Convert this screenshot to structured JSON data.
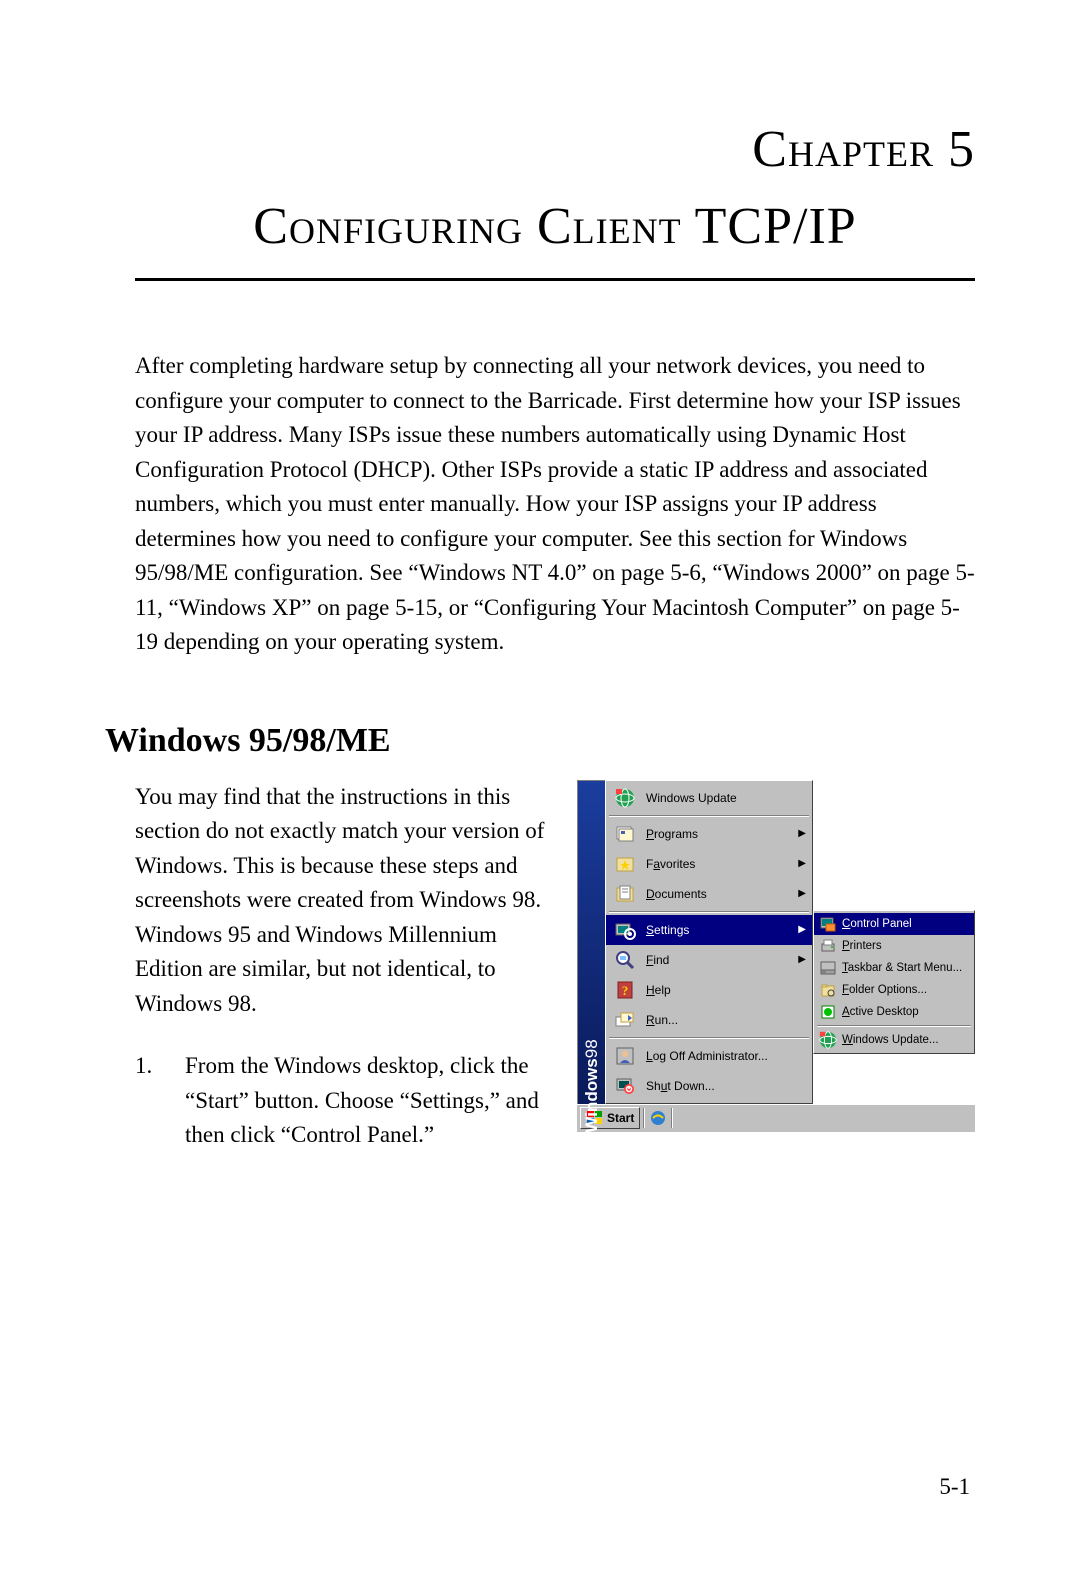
{
  "chapter": {
    "label": "Chapter 5",
    "title": "Configuring Client TCP/IP"
  },
  "intro_paragraph": "After completing hardware setup by connecting all your network devices, you need to configure your computer to connect to the Barricade. First determine how your ISP issues your IP address. Many ISPs issue these numbers automatically using Dynamic Host Configuration Protocol (DHCP). Other ISPs provide a static IP address and associated numbers, which you must enter manually. How your ISP assigns your IP address determines how you need to configure your computer. See this section for Windows 95/98/ME configuration. See “Windows NT 4.0” on page 5-6, “Windows 2000” on page 5-11, “Windows XP” on page 5-15, or “Configuring Your Macintosh Computer” on page 5-19 depending on your operating system.",
  "section": {
    "heading": "Windows 95/98/ME",
    "body_para": "You may find that the instructions in this section do not exactly match your version of Windows. This is because these steps and screenshots were created from Windows 98. Windows 95 and Windows Millennium Edition are similar, but not identical, to Windows 98.",
    "step_number": "1.",
    "step_text": "From the Windows desktop, click the “Start” button. Choose “Settings,” and then click “Control Panel.”"
  },
  "screenshot": {
    "banner_text_main": "Windows",
    "banner_text_version": "98",
    "start_menu": {
      "items": [
        {
          "label": "Windows Update",
          "underline": "",
          "icon": "globe",
          "arrow": false,
          "hl": false
        },
        {
          "sep": true
        },
        {
          "label": "Programs",
          "underline": "P",
          "icon": "programs",
          "arrow": true,
          "hl": false
        },
        {
          "label": "Favorites",
          "underline": "a",
          "icon": "favorites",
          "arrow": true,
          "hl": false
        },
        {
          "label": "Documents",
          "underline": "D",
          "icon": "documents",
          "arrow": true,
          "hl": false
        },
        {
          "sep": true
        },
        {
          "label": "Settings",
          "underline": "S",
          "icon": "settings",
          "arrow": true,
          "hl": true
        },
        {
          "label": "Find",
          "underline": "F",
          "icon": "find",
          "arrow": true,
          "hl": false
        },
        {
          "label": "Help",
          "underline": "H",
          "icon": "help",
          "arrow": false,
          "hl": false
        },
        {
          "label": "Run...",
          "underline": "R",
          "icon": "run",
          "arrow": false,
          "hl": false
        },
        {
          "sep": true
        },
        {
          "label": "Log Off Administrator...",
          "underline": "L",
          "icon": "logoff",
          "arrow": false,
          "hl": false
        },
        {
          "label": "Shut Down...",
          "underline": "u",
          "icon": "shutdown",
          "arrow": false,
          "hl": false
        }
      ]
    },
    "submenu": {
      "items": [
        {
          "label": "Control Panel",
          "underline": "C",
          "icon": "control-panel",
          "hl": true
        },
        {
          "label": "Printers",
          "underline": "P",
          "icon": "printers",
          "hl": false
        },
        {
          "label": "Taskbar & Start Menu...",
          "underline": "T",
          "icon": "taskbar",
          "hl": false
        },
        {
          "label": "Folder Options...",
          "underline": "F",
          "icon": "folder-options",
          "hl": false
        },
        {
          "label": "Active Desktop",
          "underline": "A",
          "icon": "active-desktop",
          "hl": false
        },
        {
          "sep": true
        },
        {
          "label": "Windows Update...",
          "underline": "W",
          "icon": "globe",
          "hl": false
        }
      ]
    },
    "taskbar": {
      "start_label": "Start",
      "quick_launch": [
        "ie-icon"
      ]
    },
    "colors": {
      "menu_bg": "#c0c0c0",
      "highlight_bg": "#000080",
      "highlight_text": "#ffffff",
      "banner_gradient_top": "#1a3d9e",
      "banner_gradient_bottom": "#0a1a5a"
    }
  },
  "page_number": "5-1"
}
